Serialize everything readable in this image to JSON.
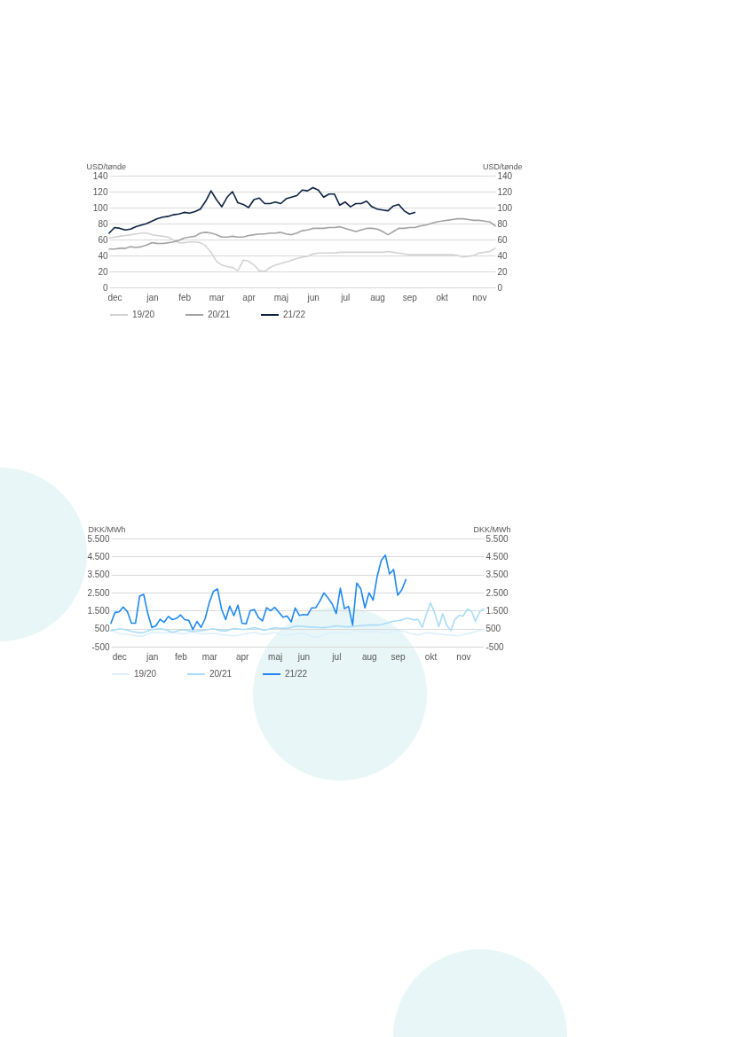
{
  "chart_data": [
    {
      "type": "line",
      "ylabel": "USD/tønde",
      "y2label": "USD/tønde",
      "categories": [
        null,
        "dec",
        null,
        null,
        null,
        null,
        null,
        null,
        "jan",
        null,
        null,
        null,
        null,
        null,
        "feb",
        null,
        null,
        null,
        null,
        null,
        "mar",
        null,
        null,
        null,
        null,
        null,
        "apr",
        null,
        null,
        null,
        null,
        null,
        "maj",
        null,
        null,
        null,
        null,
        null,
        "jun",
        null,
        null,
        null,
        null,
        null,
        "jul",
        null,
        null,
        null,
        null,
        null,
        "aug",
        null,
        null,
        null,
        null,
        null,
        "sep",
        null,
        null,
        null,
        null,
        null,
        "okt",
        null,
        null,
        null,
        null,
        null,
        null,
        "nov",
        null,
        null,
        null
      ],
      "ylim": [
        0,
        140
      ],
      "yticks": [
        0,
        20,
        40,
        60,
        80,
        100,
        120,
        140
      ],
      "y2lim": [
        0,
        140
      ],
      "y2ticks": [
        0,
        20,
        40,
        60,
        80,
        100,
        120,
        140
      ],
      "grid": "y",
      "legend": "bottom",
      "series": [
        {
          "name": "19/20",
          "color": "#d3d3d3",
          "values": [
            62,
            63,
            64,
            65,
            66,
            67,
            68,
            68,
            66,
            65,
            64,
            63,
            59,
            56,
            56,
            57,
            57,
            56,
            52,
            44,
            33,
            28,
            26,
            25,
            21,
            34,
            33,
            28,
            21,
            20,
            25,
            28,
            30,
            32,
            34,
            36,
            38,
            39,
            42,
            43,
            43,
            43,
            43,
            44,
            44,
            44,
            44,
            44,
            44,
            44,
            44,
            44,
            45,
            44,
            43,
            42,
            41,
            41,
            41,
            41,
            41,
            41,
            41,
            41,
            41,
            40,
            38,
            39,
            40,
            43,
            44,
            45,
            49
          ]
        },
        {
          "name": "20/21",
          "color": "#a3a3a3",
          "values": [
            48,
            48,
            49,
            49,
            51,
            50,
            51,
            53,
            56,
            55,
            55,
            56,
            57,
            59,
            62,
            63,
            64,
            68,
            69,
            68,
            66,
            63,
            63,
            64,
            63,
            63,
            65,
            66,
            67,
            67,
            68,
            68,
            69,
            67,
            66,
            68,
            71,
            72,
            74,
            74,
            74,
            75,
            75,
            76,
            74,
            72,
            70,
            72,
            74,
            74,
            73,
            70,
            66,
            70,
            74,
            74,
            75,
            75,
            77,
            78,
            80,
            82,
            83,
            84,
            85,
            86,
            86,
            85,
            84,
            84,
            83,
            82,
            77
          ]
        },
        {
          "name": "21/22",
          "color": "#0d2340",
          "values": [
            68,
            75,
            74,
            72,
            73,
            76,
            78,
            80,
            83,
            86,
            88,
            89,
            91,
            92,
            94,
            93,
            95,
            98,
            108,
            121,
            110,
            101,
            113,
            120,
            106,
            104,
            100,
            110,
            112,
            105,
            105,
            107,
            105,
            111,
            113,
            115,
            122,
            121,
            125,
            122,
            113,
            117,
            117,
            103,
            107,
            101,
            105,
            105,
            108,
            101,
            98,
            97,
            96,
            102,
            104,
            96,
            92,
            94,
            null,
            null,
            null,
            null,
            null,
            null,
            null,
            null,
            null,
            null,
            null,
            null,
            null,
            null,
            null
          ]
        }
      ]
    },
    {
      "type": "line",
      "ylabel": "DKK/MWh",
      "y2label": "DKK/MWh",
      "categories": [
        null,
        null,
        "dec",
        null,
        null,
        null,
        null,
        null,
        null,
        null,
        "jan",
        null,
        null,
        null,
        null,
        null,
        null,
        "feb",
        null,
        null,
        null,
        null,
        null,
        null,
        "mar",
        null,
        null,
        null,
        null,
        null,
        null,
        null,
        "apr",
        null,
        null,
        null,
        null,
        null,
        null,
        null,
        "maj",
        null,
        null,
        null,
        null,
        null,
        null,
        "jun",
        null,
        null,
        null,
        null,
        null,
        null,
        null,
        "jul",
        null,
        null,
        null,
        null,
        null,
        null,
        null,
        "aug",
        null,
        null,
        null,
        null,
        null,
        null,
        "sep",
        null,
        null,
        null,
        null,
        null,
        null,
        null,
        "okt",
        null,
        null,
        null,
        null,
        null,
        null,
        null,
        "nov",
        null,
        null,
        null,
        null,
        null
      ],
      "ylim": [
        -500,
        5500
      ],
      "yticks": [
        -500,
        500,
        {
          "value": 1500,
          "label": "1.500"
        },
        {
          "value": 2500,
          "label": "2.500"
        },
        {
          "value": 3500,
          "label": "3.500"
        },
        {
          "value": 4500,
          "label": "4.500"
        },
        {
          "value": 5500,
          "label": "5.500"
        }
      ],
      "y2lim": [
        -500,
        5500
      ],
      "y2ticks": [
        -500,
        500,
        {
          "value": 1500,
          "label": "1.500"
        },
        {
          "value": 2500,
          "label": "2.500"
        },
        {
          "value": 3500,
          "label": "3.500"
        },
        {
          "value": 4500,
          "label": "4.500"
        },
        {
          "value": 5500,
          "label": "5.500"
        }
      ],
      "grid": "y",
      "legend": "bottom",
      "series": [
        {
          "name": "19/20",
          "color": "#dcf0fb",
          "values": [
            400,
            320,
            240,
            195,
            175,
            150,
            110,
            70,
            100,
            200,
            300,
            280,
            260,
            260,
            280,
            300,
            260,
            220,
            220,
            260,
            300,
            260,
            220,
            210,
            230,
            250,
            210,
            170,
            140,
            120,
            100,
            140,
            180,
            220,
            260,
            300,
            240,
            180,
            210,
            240,
            300,
            220,
            140,
            120,
            160,
            200,
            220,
            240,
            175,
            75,
            0,
            80,
            160,
            220,
            260,
            300,
            260,
            220,
            240,
            320,
            400,
            360,
            320,
            320,
            340,
            350,
            310,
            270,
            280,
            340,
            400,
            360,
            320,
            240,
            180,
            150,
            210,
            270,
            260,
            220,
            200,
            180,
            160,
            140,
            120,
            100,
            160,
            220,
            280,
            340,
            400,
            440
          ]
        },
        {
          "name": "20/21",
          "color": "#a9dcf7",
          "values": [
            400,
            440,
            480,
            470,
            410,
            350,
            310,
            270,
            290,
            370,
            450,
            470,
            490,
            460,
            380,
            300,
            360,
            420,
            430,
            390,
            350,
            370,
            390,
            420,
            460,
            500,
            440,
            380,
            380,
            440,
            500,
            480,
            460,
            470,
            510,
            550,
            490,
            430,
            430,
            490,
            550,
            530,
            520,
            500,
            570,
            630,
            640,
            620,
            600,
            590,
            580,
            560,
            550,
            580,
            620,
            650,
            640,
            610,
            600,
            620,
            640,
            660,
            680,
            700,
            700,
            700,
            720,
            790,
            850,
            910,
            940,
            980,
            1070,
            1050,
            980,
            1020,
            570,
            1300,
            1930,
            1400,
            600,
            1330,
            670,
            400,
            1030,
            1230,
            1200,
            1580,
            1480,
            900,
            1430,
            1600
          ]
        },
        {
          "name": "21/22",
          "color": "#1e88f0",
          "values": [
            800,
            1400,
            1430,
            1700,
            1450,
            800,
            800,
            2300,
            2400,
            1340,
            560,
            670,
            1020,
            850,
            1180,
            1000,
            1070,
            1260,
            1000,
            960,
            450,
            900,
            570,
            1060,
            1940,
            2560,
            2700,
            1590,
            1000,
            1750,
            1220,
            1800,
            800,
            770,
            1490,
            1560,
            1120,
            930,
            1660,
            1500,
            1680,
            1410,
            1130,
            1200,
            880,
            1650,
            1230,
            1280,
            1260,
            1650,
            1660,
            2030,
            2480,
            2200,
            1870,
            1340,
            2740,
            1610,
            1730,
            700,
            3030,
            2710,
            1650,
            2490,
            2080,
            3400,
            4280,
            4580,
            3530,
            3780,
            2350,
            2650,
            3220,
            null,
            null,
            null,
            null,
            null,
            null,
            null,
            null,
            null,
            null,
            null,
            null,
            null,
            null,
            null,
            null,
            null,
            null,
            null
          ]
        }
      ]
    }
  ]
}
